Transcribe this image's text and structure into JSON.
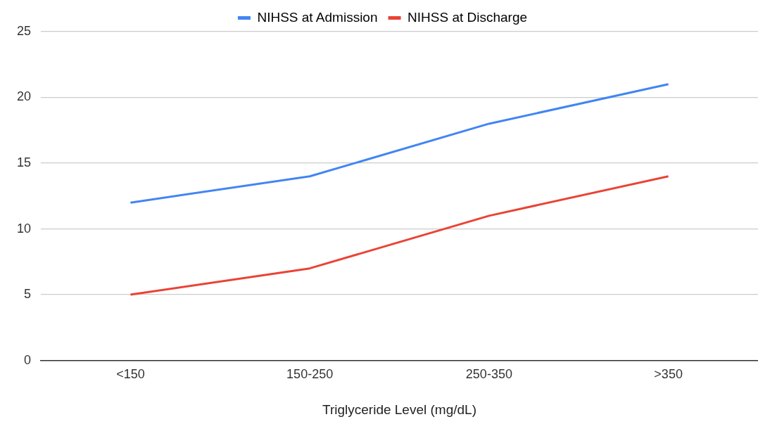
{
  "chart_data": {
    "type": "line",
    "xlabel": "Triglyceride Level (mg/dL)",
    "categories": [
      "<150",
      "150-250",
      "250-350",
      ">350"
    ],
    "series": [
      {
        "name": "NIHSS at Admission",
        "color": "#4285f4",
        "values": [
          12,
          14,
          18,
          21
        ]
      },
      {
        "name": "NIHSS at Discharge",
        "color": "#ea4335",
        "values": [
          5,
          7,
          11,
          14
        ]
      }
    ],
    "ylim": [
      0,
      25
    ],
    "yticks": [
      0,
      5,
      10,
      15,
      20,
      25
    ],
    "grid": "y",
    "legend": "top",
    "marker": "none",
    "line_style": "solid"
  }
}
